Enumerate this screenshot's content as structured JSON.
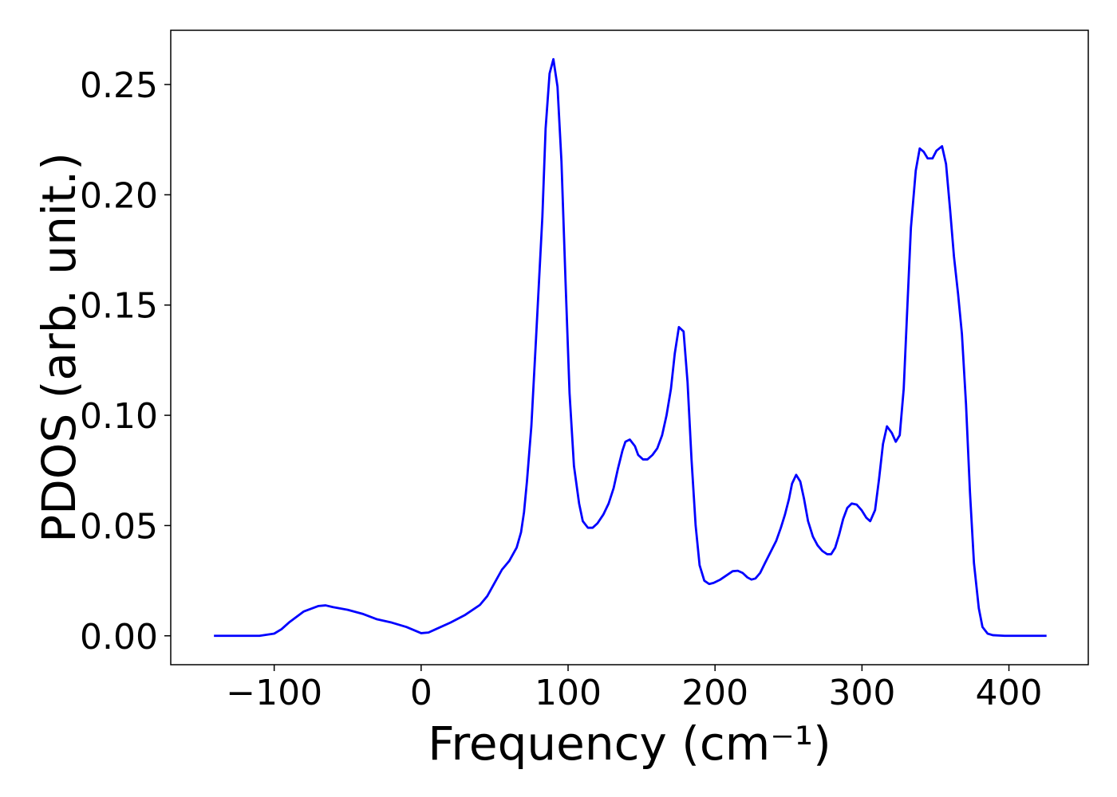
{
  "chart_data": {
    "type": "line",
    "xlabel": "Frequency (cm⁻¹)",
    "ylabel": "PDOS (arb. unit.)",
    "xlim": [
      -170.4,
      454
    ],
    "ylim": [
      -0.0131,
      0.2746
    ],
    "xticks": [
      {
        "value": -100,
        "label": "−100"
      },
      0,
      100,
      200,
      300,
      400
    ],
    "yticks": [
      {
        "value": 0,
        "label": "0.00"
      },
      {
        "value": 0.05,
        "label": "0.05"
      },
      {
        "value": 0.1,
        "label": "0.10"
      },
      {
        "value": 0.15,
        "label": "0.15"
      },
      {
        "value": 0.2,
        "label": "0.20"
      },
      {
        "value": 0.25,
        "label": "0.25"
      }
    ],
    "grid": false,
    "series": [
      {
        "color": "#0000ff",
        "x": [
          -141,
          -110,
          -100,
          -95,
          -90,
          -80,
          -70,
          -65,
          -60,
          -50,
          -40,
          -30,
          -20,
          -10,
          0,
          5,
          10,
          20,
          30,
          40,
          45,
          50,
          55,
          60,
          65,
          68,
          70,
          72,
          75,
          78.2,
          82.5,
          84.7,
          87.4,
          90,
          92.8,
          95.5,
          98.3,
          101,
          104,
          107.5,
          110,
          113.5,
          116.7,
          120,
          124,
          127.6,
          131,
          134,
          137,
          139,
          142,
          145.5,
          147.7,
          151,
          154,
          157.4,
          160.7,
          164,
          167,
          170,
          172.6,
          175.4,
          178.6,
          181.3,
          184,
          186.8,
          189.5,
          192.7,
          196,
          199,
          203.6,
          208,
          212,
          215.5,
          218.8,
          222,
          224.8,
          227.5,
          230.7,
          234,
          237.8,
          241.6,
          244.8,
          247.6,
          250.3,
          252.4,
          255.2,
          258,
          260.6,
          263.3,
          266.6,
          269.8,
          273,
          276.3,
          279,
          281.8,
          284.5,
          287.2,
          290,
          293,
          296.4,
          299.7,
          303,
          305.6,
          308.9,
          311.6,
          314.3,
          317,
          320.3,
          323,
          325.7,
          328.4,
          330.6,
          333.3,
          336.6,
          339.3,
          342,
          344.7,
          348,
          350.7,
          354.5,
          357.2,
          360,
          362.6,
          365.4,
          368,
          370.8,
          373.5,
          376.2,
          379.5,
          382,
          385.5,
          389,
          397,
          425.6
        ],
        "values": [
          0,
          0,
          0.001,
          0.003,
          0.006,
          0.011,
          0.0135,
          0.0138,
          0.013,
          0.0118,
          0.01,
          0.0075,
          0.006,
          0.004,
          0.0012,
          0.0015,
          0.003,
          0.006,
          0.0095,
          0.014,
          0.018,
          0.024,
          0.03,
          0.034,
          0.04,
          0.047,
          0.056,
          0.07,
          0.095,
          0.135,
          0.19,
          0.23,
          0.255,
          0.2615,
          0.249,
          0.215,
          0.16,
          0.11,
          0.077,
          0.06,
          0.052,
          0.049,
          0.049,
          0.051,
          0.055,
          0.06,
          0.067,
          0.076,
          0.084,
          0.088,
          0.089,
          0.086,
          0.082,
          0.08,
          0.08,
          0.082,
          0.085,
          0.091,
          0.1,
          0.112,
          0.128,
          0.14,
          0.138,
          0.115,
          0.08,
          0.05,
          0.032,
          0.025,
          0.0235,
          0.024,
          0.0255,
          0.0275,
          0.0293,
          0.0295,
          0.0285,
          0.0265,
          0.0255,
          0.026,
          0.0285,
          0.033,
          0.038,
          0.043,
          0.049,
          0.055,
          0.062,
          0.069,
          0.073,
          0.07,
          0.062,
          0.052,
          0.045,
          0.041,
          0.0385,
          0.037,
          0.037,
          0.04,
          0.046,
          0.053,
          0.058,
          0.06,
          0.0595,
          0.057,
          0.0535,
          0.052,
          0.057,
          0.071,
          0.087,
          0.095,
          0.092,
          0.088,
          0.091,
          0.112,
          0.145,
          0.185,
          0.211,
          0.221,
          0.2195,
          0.2165,
          0.2165,
          0.22,
          0.222,
          0.214,
          0.193,
          0.172,
          0.155,
          0.137,
          0.105,
          0.065,
          0.033,
          0.0125,
          0.004,
          0.001,
          0.0003,
          0,
          0
        ]
      }
    ]
  }
}
